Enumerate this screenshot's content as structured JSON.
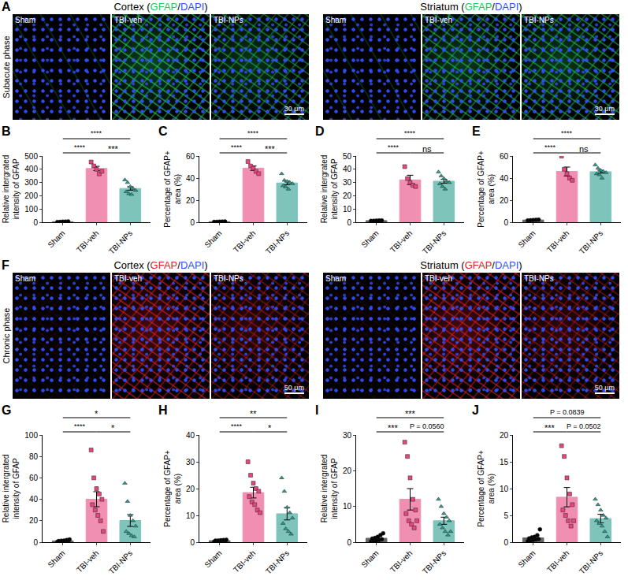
{
  "image_rows": [
    {
      "panel": "A",
      "phase": "Subacute phase",
      "groups": [
        {
          "title": "Cortex (GFAP/DAPI)",
          "stain": "GFAP",
          "stain_color": "#22c55e",
          "counterstain": "DAPI",
          "counterstain_color": "#2f4fff",
          "panels": [
            "Sham",
            "TBI-veh",
            "TBI-NPs"
          ],
          "scale_bar": "30 μm"
        },
        {
          "title": "Striatum (GFAP/DAPI)",
          "stain": "GFAP",
          "stain_color": "#22c55e",
          "counterstain": "DAPI",
          "counterstain_color": "#2f4fff",
          "panels": [
            "Sham",
            "TBI-veh",
            "TBI-NPs"
          ],
          "scale_bar": "30 μm"
        }
      ]
    },
    {
      "panel": "F",
      "phase": "Chronic phase",
      "groups": [
        {
          "title": "Cortex (GFAP/DAPI)",
          "stain": "GFAP",
          "stain_color": "#e0202a",
          "counterstain": "DAPI",
          "counterstain_color": "#2f4fff",
          "panels": [
            "Sham",
            "TBI-veh",
            "TBI-NPs"
          ],
          "scale_bar": "50 μm"
        },
        {
          "title": "Striatum (GFAP/DAPI)",
          "stain": "GFAP",
          "stain_color": "#e0202a",
          "counterstain": "DAPI",
          "counterstain_color": "#2f4fff",
          "panels": [
            "Sham",
            "TBI-veh",
            "TBI-NPs"
          ],
          "scale_bar": "50 μm"
        }
      ]
    }
  ],
  "chart_data": [
    {
      "type": "bar",
      "panel": "B",
      "ylabel": "Relative intergrated intensity of GFAP",
      "categories": [
        "Sham",
        "TBI-veh",
        "TBI-NPs"
      ],
      "values": [
        4,
        406,
        255
      ],
      "errors": [
        0.7,
        16,
        13
      ],
      "points": [
        [
          2,
          3,
          4,
          5,
          6
        ],
        [
          455,
          425,
          400,
          365,
          385
        ],
        [
          320,
          300,
          270,
          255,
          240,
          230,
          215,
          210
        ]
      ],
      "colors": [
        "#000000",
        "#e8457f",
        "#2a9d8f"
      ],
      "ylim": [
        0,
        500
      ],
      "yticks": [
        0,
        100,
        200,
        300,
        400,
        500
      ],
      "grid": false,
      "significance": [
        {
          "from": 0,
          "to": 2,
          "label": "****"
        },
        {
          "from": 0,
          "to": 1,
          "label": "****"
        },
        {
          "from": 1,
          "to": 2,
          "label": "***"
        }
      ]
    },
    {
      "type": "bar",
      "panel": "C",
      "ylabel": "Percentage of GFAP+ area (%)",
      "categories": [
        "Sham",
        "TBI-veh",
        "TBI-NPs"
      ],
      "values": [
        0.5,
        49,
        35.6
      ],
      "errors": [
        0.1,
        2,
        1.6
      ],
      "points": [
        [
          0.3,
          0.4,
          0.5,
          0.6,
          0.7
        ],
        [
          55,
          51,
          49,
          46,
          44
        ],
        [
          44,
          38,
          37,
          36,
          35,
          33,
          32,
          30
        ]
      ],
      "colors": [
        "#000000",
        "#e8457f",
        "#2a9d8f"
      ],
      "ylim": [
        0,
        60
      ],
      "yticks": [
        0,
        20,
        40,
        60
      ],
      "grid": false,
      "significance": [
        {
          "from": 0,
          "to": 2,
          "label": "****"
        },
        {
          "from": 0,
          "to": 1,
          "label": "****"
        },
        {
          "from": 1,
          "to": 2,
          "label": "***"
        }
      ]
    },
    {
      "type": "bar",
      "panel": "D",
      "ylabel": "Relative intergrated intensity of GFAP",
      "categories": [
        "Sham",
        "TBI-veh",
        "TBI-NPs"
      ],
      "values": [
        1.2,
        32,
        31
      ],
      "errors": [
        0.1,
        3.5,
        1.5
      ],
      "points": [
        [
          1.0,
          1.1,
          1.2,
          1.3,
          1.4
        ],
        [
          42,
          33,
          30,
          28,
          27
        ],
        [
          38,
          35,
          33,
          31,
          30,
          29,
          27,
          25
        ]
      ],
      "colors": [
        "#000000",
        "#e8457f",
        "#2a9d8f"
      ],
      "ylim": [
        0,
        50
      ],
      "yticks": [
        0,
        10,
        20,
        30,
        40,
        50
      ],
      "grid": false,
      "significance": [
        {
          "from": 0,
          "to": 2,
          "label": "****"
        },
        {
          "from": 0,
          "to": 1,
          "label": "****"
        },
        {
          "from": 1,
          "to": 2,
          "label": "ns"
        }
      ]
    },
    {
      "type": "bar",
      "panel": "E",
      "ylabel": "Percentage of GFAP+ area (%)",
      "categories": [
        "Sham",
        "TBI-veh",
        "TBI-NPs"
      ],
      "values": [
        2,
        46,
        45.8
      ],
      "errors": [
        0.3,
        4,
        1.3
      ],
      "points": [
        [
          1.6,
          1.8,
          2,
          2.2,
          2.4
        ],
        [
          60,
          48,
          44,
          40,
          38
        ],
        [
          52,
          49,
          47,
          46,
          45,
          44,
          43,
          40
        ]
      ],
      "colors": [
        "#000000",
        "#e8457f",
        "#2a9d8f"
      ],
      "ylim": [
        0,
        60
      ],
      "yticks": [
        0,
        20,
        40,
        60
      ],
      "grid": false,
      "significance": [
        {
          "from": 0,
          "to": 2,
          "label": "****"
        },
        {
          "from": 0,
          "to": 1,
          "label": "****"
        },
        {
          "from": 1,
          "to": 2,
          "label": "ns"
        }
      ]
    },
    {
      "type": "bar",
      "panel": "G",
      "ylabel": "Relative intergrated intensity of GFAP",
      "categories": [
        "Sham",
        "TBI-veh",
        "TBI-NPs"
      ],
      "values": [
        1.2,
        40.1,
        20.2
      ],
      "errors": [
        0.3,
        7,
        5.5
      ],
      "points": [
        [
          0.3,
          0.5,
          0.7,
          0.9,
          1.0,
          1.1,
          1.3,
          1.5,
          2.0,
          2.5
        ],
        [
          86,
          60,
          50,
          45,
          40,
          35,
          30,
          25,
          20,
          10
        ],
        [
          55,
          38,
          25,
          20,
          15,
          10,
          8,
          6,
          5
        ]
      ],
      "colors": [
        "#000000",
        "#e8457f",
        "#2a9d8f"
      ],
      "ylim": [
        0,
        100
      ],
      "yticks": [
        0,
        20,
        40,
        60,
        80,
        100
      ],
      "grid": false,
      "significance": [
        {
          "from": 0,
          "to": 2,
          "label": "*"
        },
        {
          "from": 0,
          "to": 1,
          "label": "****"
        },
        {
          "from": 1,
          "to": 2,
          "label": "*"
        }
      ]
    },
    {
      "type": "bar",
      "panel": "H",
      "ylabel": "Percentage of GFAP+ area (%)",
      "categories": [
        "Sham",
        "TBI-veh",
        "TBI-NPs"
      ],
      "values": [
        0.55,
        18.5,
        10.6
      ],
      "errors": [
        0.1,
        2,
        2.3
      ],
      "points": [
        [
          0.2,
          0.3,
          0.4,
          0.5,
          0.5,
          0.6,
          0.6,
          0.7,
          0.8,
          0.9
        ],
        [
          30,
          25,
          22,
          20,
          19,
          17,
          15,
          14,
          12,
          11
        ],
        [
          24,
          19,
          13,
          11,
          9,
          7,
          5,
          4,
          3
        ]
      ],
      "colors": [
        "#000000",
        "#e8457f",
        "#2a9d8f"
      ],
      "ylim": [
        0,
        40
      ],
      "yticks": [
        0,
        10,
        20,
        30,
        40
      ],
      "grid": false,
      "significance": [
        {
          "from": 0,
          "to": 2,
          "label": "**"
        },
        {
          "from": 0,
          "to": 1,
          "label": "****"
        },
        {
          "from": 1,
          "to": 2,
          "label": "*"
        }
      ]
    },
    {
      "type": "bar",
      "panel": "I",
      "ylabel": "Relative intergrated intensity of GFAP",
      "categories": [
        "Sham",
        "TBI-veh",
        "TBI-NPs"
      ],
      "values": [
        1.1,
        12,
        6
      ],
      "errors": [
        0.3,
        3,
        1
      ],
      "points": [
        [
          0.2,
          0.3,
          0.5,
          0.6,
          0.8,
          1.0,
          1.2,
          1.5,
          2.0,
          2.5
        ],
        [
          28,
          24,
          18,
          12,
          9,
          8,
          6,
          5,
          4,
          6
        ],
        [
          12,
          10,
          8,
          7,
          6,
          5,
          4,
          3,
          2,
          3
        ]
      ],
      "colors": [
        "#000000",
        "#e8457f",
        "#2a9d8f"
      ],
      "ylim": [
        0,
        30
      ],
      "yticks": [
        0,
        10,
        20,
        30
      ],
      "grid": false,
      "significance": [
        {
          "from": 0,
          "to": 2,
          "label": "***"
        },
        {
          "from": 0,
          "to": 1,
          "label": "***"
        },
        {
          "from": 1,
          "to": 2,
          "label": "P = 0.0560"
        }
      ]
    },
    {
      "type": "bar",
      "panel": "J",
      "ylabel": "Percentage of GFAP+ area (%)",
      "categories": [
        "Sham",
        "TBI-veh",
        "TBI-NPs"
      ],
      "values": [
        0.8,
        8.4,
        4.4
      ],
      "errors": [
        0.2,
        1.8,
        0.8
      ],
      "points": [
        [
          0.2,
          0.3,
          0.4,
          0.5,
          0.6,
          0.7,
          0.9,
          1.0,
          1.3,
          2.4
        ],
        [
          18,
          16,
          12,
          9,
          7,
          6,
          5,
          4,
          3,
          4
        ],
        [
          8,
          7,
          6,
          5,
          4.5,
          4,
          3.5,
          3,
          2,
          1
        ]
      ],
      "colors": [
        "#000000",
        "#e8457f",
        "#2a9d8f"
      ],
      "ylim": [
        0,
        20
      ],
      "yticks": [
        0,
        5,
        10,
        15,
        20
      ],
      "grid": false,
      "significance": [
        {
          "from": 0,
          "to": 2,
          "label": "P = 0.0839"
        },
        {
          "from": 0,
          "to": 1,
          "label": "***"
        },
        {
          "from": 1,
          "to": 2,
          "label": "P = 0.0502"
        }
      ]
    }
  ]
}
